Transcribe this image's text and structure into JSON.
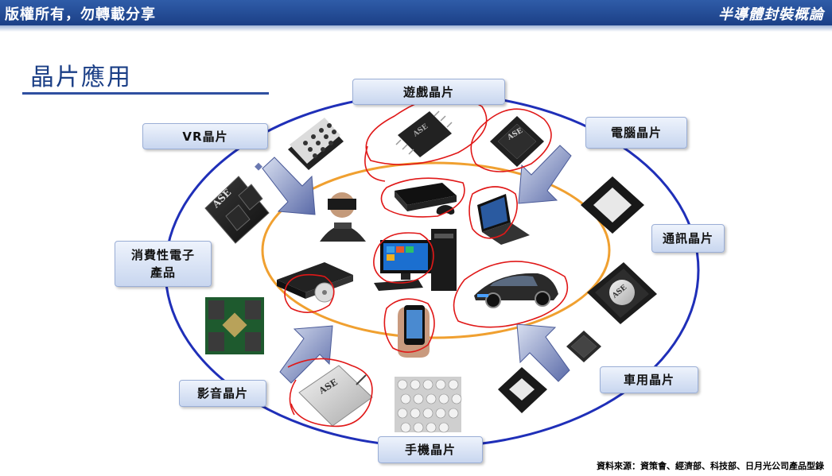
{
  "header": {
    "left_text": "版權所有，勿轉載分享",
    "right_text": "半導體封裝概論"
  },
  "slide": {
    "title": "晶片應用",
    "labels": {
      "game": "遊戲晶片",
      "vr": "VR晶片",
      "pc": "電腦晶片",
      "comm": "通訊晶片",
      "consumer_line1": "消費性電子",
      "consumer_line2": "產品",
      "av": "影音晶片",
      "car": "車用晶片",
      "phone": "手機晶片"
    },
    "chip_marks": {
      "ase": "ASE"
    },
    "source": "資料來源：資策會、經濟部、科技部、日月光公司產品型錄"
  },
  "colors": {
    "header_blue": "#1b3f86",
    "outer_ring": "#1f2fb8",
    "inner_ring": "#f0a030",
    "annotation_red": "#e01818"
  },
  "icons": [
    "vr-headset-user-icon",
    "game-console-icon",
    "laptop-icon",
    "desktop-pc-icon",
    "dvd-player-icon",
    "smartphone-icon",
    "sports-car-icon",
    "chip-icon",
    "arrow-icon"
  ]
}
